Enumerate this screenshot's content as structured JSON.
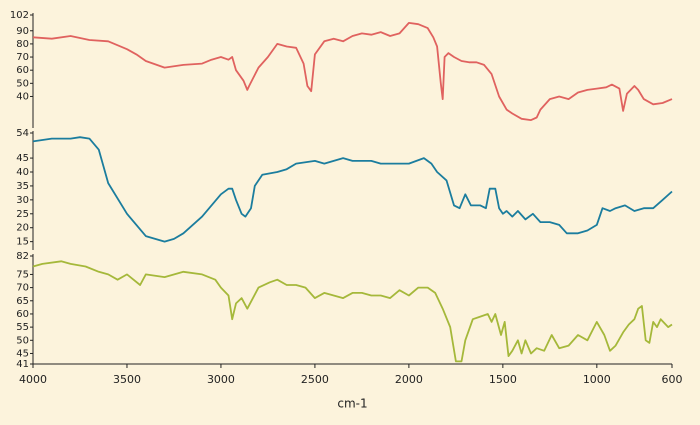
{
  "chart_data": [
    {
      "type": "line",
      "color": "#e0625f",
      "xlim": [
        4000,
        600
      ],
      "ylim": [
        16,
        102
      ],
      "yticks": [
        40,
        50,
        60,
        70,
        80,
        90,
        102
      ],
      "x": [
        4000,
        3900,
        3800,
        3700,
        3600,
        3500,
        3450,
        3400,
        3300,
        3200,
        3100,
        3050,
        3000,
        2960,
        2940,
        2920,
        2880,
        2860,
        2850,
        2800,
        2750,
        2700,
        2650,
        2600,
        2560,
        2540,
        2520,
        2500,
        2450,
        2400,
        2350,
        2300,
        2250,
        2200,
        2150,
        2100,
        2050,
        2000,
        1950,
        1900,
        1870,
        1850,
        1830,
        1820,
        1810,
        1790,
        1760,
        1720,
        1680,
        1640,
        1600,
        1560,
        1520,
        1480,
        1450,
        1400,
        1350,
        1320,
        1300,
        1250,
        1200,
        1150,
        1100,
        1050,
        1000,
        950,
        920,
        880,
        860,
        840,
        800,
        780,
        750,
        700,
        650,
        600
      ],
      "values": [
        85,
        84,
        86,
        83,
        82,
        76,
        72,
        67,
        62,
        64,
        65,
        68,
        70,
        68,
        70,
        60,
        52,
        45,
        48,
        62,
        70,
        80,
        78,
        77,
        65,
        48,
        44,
        72,
        82,
        84,
        82,
        86,
        88,
        87,
        89,
        86,
        88,
        96,
        95,
        92,
        85,
        78,
        50,
        38,
        70,
        73,
        70,
        67,
        66,
        66,
        64,
        57,
        40,
        30,
        27,
        23,
        22,
        24,
        30,
        38,
        40,
        38,
        43,
        45,
        46,
        47,
        49,
        46,
        29,
        42,
        48,
        45,
        38,
        34,
        35,
        38
      ]
    },
    {
      "type": "line",
      "color": "#1b7d9e",
      "xlim": [
        4000,
        600
      ],
      "ylim": [
        12,
        54
      ],
      "yticks": [
        15,
        20,
        25,
        30,
        35,
        40,
        45,
        54
      ],
      "x": [
        4000,
        3900,
        3800,
        3750,
        3700,
        3650,
        3600,
        3500,
        3400,
        3300,
        3250,
        3200,
        3100,
        3000,
        2960,
        2940,
        2920,
        2890,
        2870,
        2840,
        2820,
        2780,
        2700,
        2650,
        2600,
        2500,
        2450,
        2400,
        2350,
        2300,
        2200,
        2150,
        2100,
        2000,
        1920,
        1880,
        1850,
        1800,
        1760,
        1730,
        1700,
        1670,
        1620,
        1590,
        1570,
        1540,
        1520,
        1500,
        1480,
        1450,
        1420,
        1380,
        1340,
        1300,
        1250,
        1200,
        1160,
        1100,
        1050,
        1000,
        970,
        930,
        900,
        850,
        800,
        750,
        700,
        650,
        600
      ],
      "values": [
        51,
        52,
        52,
        52.5,
        52,
        48,
        36,
        25,
        17,
        15,
        16,
        18,
        24,
        32,
        34,
        34,
        30,
        25,
        24,
        27,
        35,
        39,
        40,
        41,
        43,
        44,
        43,
        44,
        45,
        44,
        44,
        43,
        43,
        43,
        45,
        43,
        40,
        37,
        28,
        27,
        32,
        28,
        28,
        27,
        34,
        34,
        27,
        25,
        26,
        24,
        26,
        23,
        25,
        22,
        22,
        21,
        18,
        18,
        19,
        21,
        27,
        26,
        27,
        28,
        26,
        27,
        27,
        30,
        33
      ]
    },
    {
      "type": "line",
      "color": "#a5b83a",
      "xlim": [
        4000,
        600
      ],
      "ylim": [
        41,
        82
      ],
      "yticks": [
        41,
        45,
        50,
        55,
        60,
        65,
        70,
        75,
        82
      ],
      "xticks": [
        4000,
        3500,
        3000,
        2500,
        2000,
        1500,
        1000,
        600
      ],
      "x_label": "cm-1",
      "x": [
        4000,
        3950,
        3850,
        3800,
        3720,
        3650,
        3600,
        3550,
        3500,
        3430,
        3400,
        3300,
        3200,
        3100,
        3030,
        3000,
        2960,
        2940,
        2920,
        2890,
        2860,
        2800,
        2740,
        2700,
        2650,
        2600,
        2550,
        2500,
        2450,
        2400,
        2350,
        2300,
        2250,
        2200,
        2150,
        2100,
        2050,
        2000,
        1950,
        1900,
        1860,
        1820,
        1780,
        1750,
        1720,
        1700,
        1660,
        1620,
        1580,
        1560,
        1540,
        1510,
        1490,
        1470,
        1450,
        1420,
        1400,
        1380,
        1350,
        1320,
        1280,
        1240,
        1200,
        1150,
        1100,
        1050,
        1000,
        960,
        930,
        900,
        860,
        830,
        800,
        780,
        760,
        740,
        720,
        700,
        680,
        660,
        620,
        600
      ],
      "values": [
        78,
        79,
        80,
        79,
        78,
        76,
        75,
        73,
        75,
        71,
        75,
        74,
        76,
        75,
        73,
        70,
        67,
        58,
        64,
        66,
        62,
        70,
        72,
        73,
        71,
        71,
        70,
        66,
        68,
        67,
        66,
        68,
        68,
        67,
        67,
        66,
        69,
        67,
        70,
        70,
        68,
        62,
        55,
        42,
        42,
        50,
        58,
        59,
        60,
        57,
        60,
        52,
        57,
        44,
        46,
        50,
        45,
        50,
        45,
        47,
        46,
        52,
        47,
        48,
        52,
        50,
        57,
        52,
        46,
        48,
        53,
        56,
        58,
        62,
        63,
        50,
        49,
        57,
        55,
        58,
        55,
        56
      ]
    }
  ]
}
